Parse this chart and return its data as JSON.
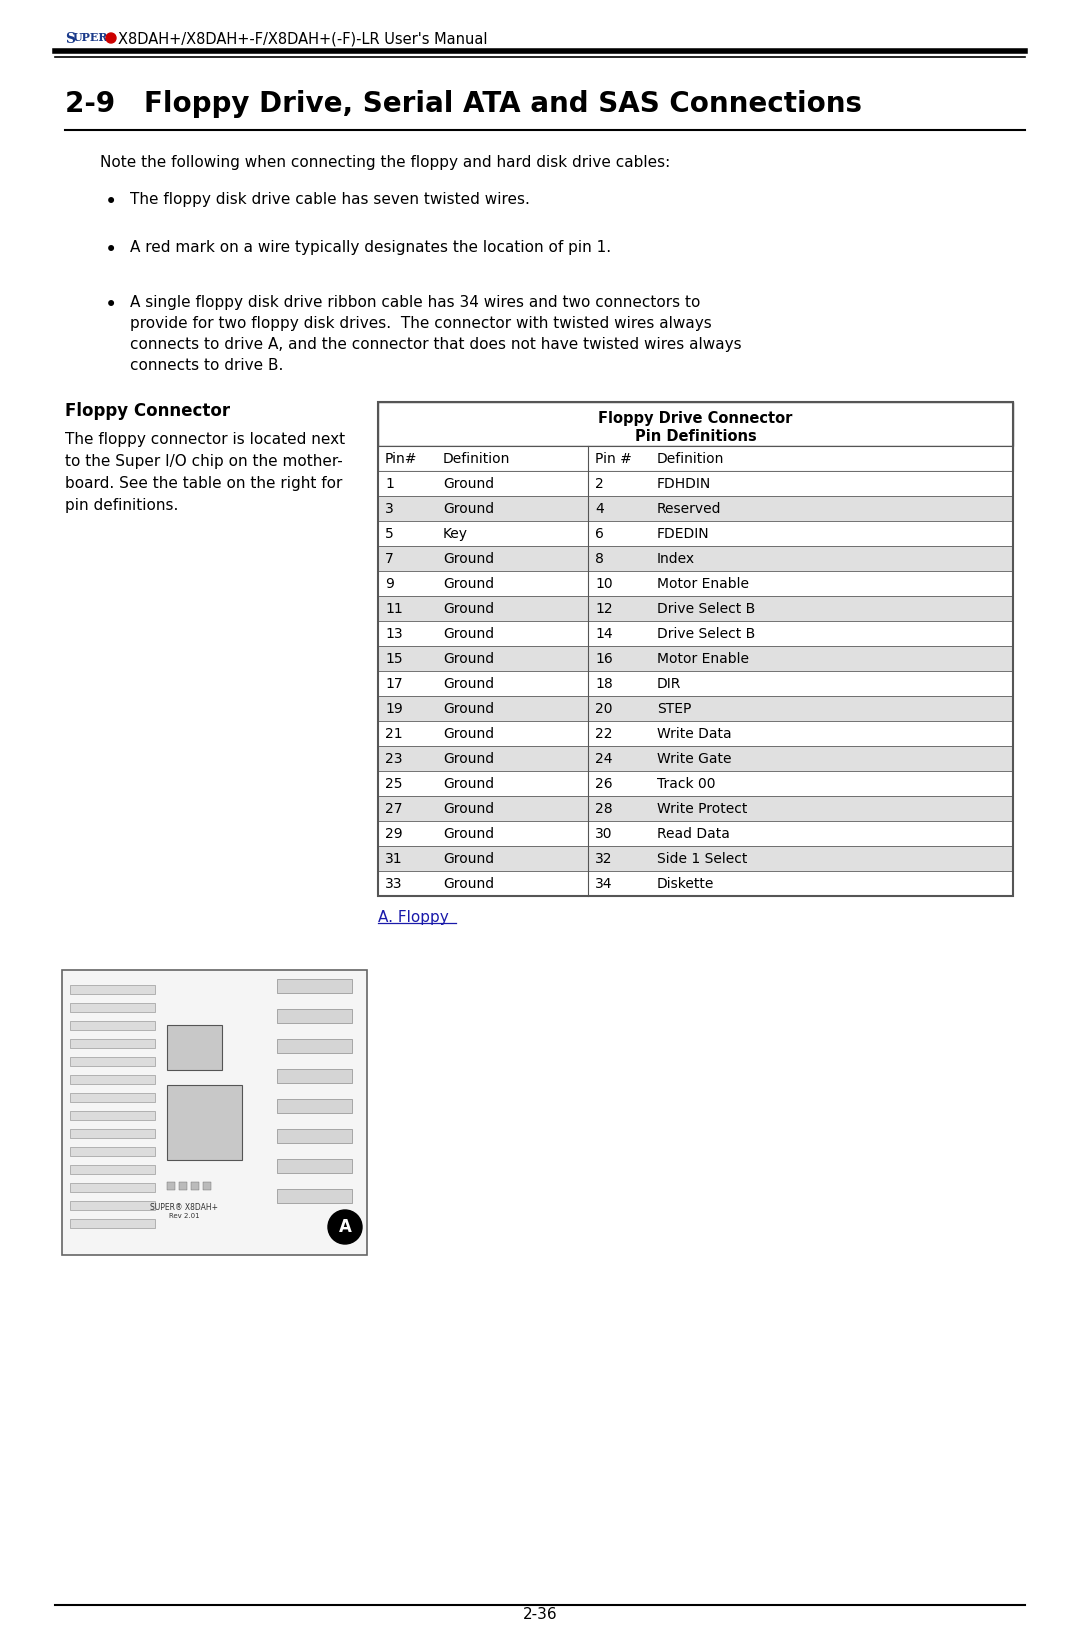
{
  "header_title": "X8DAH+/X8DAH+-F/X8DAH+(-F)-LR User's Manual",
  "section_title": "2-9   Floppy Drive, Serial ATA and SAS Connections",
  "note_text": "Note the following when connecting the floppy and hard disk drive cables:",
  "bullet1": "The floppy disk drive cable has seven twisted wires.",
  "bullet2": "A red mark on a wire typically designates the location of pin 1.",
  "bullet3_lines": [
    "A single floppy disk drive ribbon cable has 34 wires and two connectors to",
    "provide for two floppy disk drives.  The connector with twisted wires always",
    "connects to drive A, and the connector that does not have twisted wires always",
    "connects to drive B."
  ],
  "floppy_connector_title": "Floppy Connector",
  "fc_lines": [
    "The floppy connector is located next",
    "to the Super I/O chip on the mother-",
    "board. See the table on the right for",
    "pin definitions."
  ],
  "table_title1": "Floppy Drive Connector",
  "table_title2": "Pin Definitions",
  "table_headers": [
    "Pin#",
    "Definition",
    "Pin #",
    "Definition"
  ],
  "table_rows": [
    [
      "1",
      "Ground",
      "2",
      "FDHDIN"
    ],
    [
      "3",
      "Ground",
      "4",
      "Reserved"
    ],
    [
      "5",
      "Key",
      "6",
      "FDEDIN"
    ],
    [
      "7",
      "Ground",
      "8",
      "Index"
    ],
    [
      "9",
      "Ground",
      "10",
      "Motor Enable"
    ],
    [
      "11",
      "Ground",
      "12",
      "Drive Select B"
    ],
    [
      "13",
      "Ground",
      "14",
      "Drive Select B"
    ],
    [
      "15",
      "Ground",
      "16",
      "Motor Enable"
    ],
    [
      "17",
      "Ground",
      "18",
      "DIR"
    ],
    [
      "19",
      "Ground",
      "20",
      "STEP"
    ],
    [
      "21",
      "Ground",
      "22",
      "Write Data"
    ],
    [
      "23",
      "Ground",
      "24",
      "Write Gate"
    ],
    [
      "25",
      "Ground",
      "26",
      "Track 00"
    ],
    [
      "27",
      "Ground",
      "28",
      "Write Protect"
    ],
    [
      "29",
      "Ground",
      "30",
      "Read Data"
    ],
    [
      "31",
      "Ground",
      "32",
      "Side 1 Select"
    ],
    [
      "33",
      "Ground",
      "34",
      "Diskette"
    ]
  ],
  "a_floppy_label": "A. Floppy",
  "page_number": "2-36",
  "bg_color": "#ffffff",
  "table_odd_bg": "#ffffff",
  "table_even_bg": "#e0e0e0",
  "table_border_color": "#555555",
  "super_color": "#1a3a8a",
  "dot_color": "#cc0000",
  "link_color": "#1a1aaa"
}
